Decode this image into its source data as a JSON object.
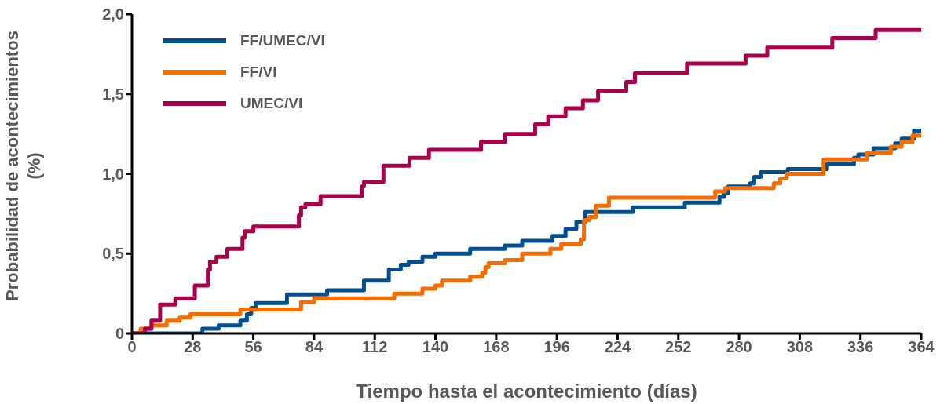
{
  "chart_data": {
    "type": "step",
    "xlabel": "Tiempo hasta el acontecimiento (días)",
    "ylabel": "Probabilidad de acontecimientos (%)",
    "xlim": [
      0,
      364
    ],
    "xticks": [
      0,
      28,
      56,
      84,
      112,
      140,
      168,
      196,
      224,
      252,
      280,
      308,
      336,
      364
    ],
    "ylim": [
      0,
      2
    ],
    "yticks": [
      {
        "value": 0,
        "label": "0"
      },
      {
        "value": 0.5,
        "label": "0,5"
      },
      {
        "value": 1,
        "label": "1,0"
      },
      {
        "value": 1.5,
        "label": "1,5"
      },
      {
        "value": 2,
        "label": "2,0"
      }
    ],
    "grid": false,
    "legend": "top left",
    "line_style": "solid",
    "marker": "none",
    "series": [
      {
        "name": "FF/UMEC/VI",
        "color": "#00508f",
        "x": [
          0,
          32.5,
          40,
          50,
          53,
          55,
          57,
          71.5,
          90,
          107,
          118.5,
          124,
          127.6,
          134,
          140,
          156,
          172,
          180,
          194,
          200,
          205,
          209,
          231,
          255,
          271,
          273,
          275,
          285,
          287,
          290,
          302.5,
          320.6,
          333,
          335,
          342,
          352,
          355,
          360.7,
          364
        ],
        "values": [
          0,
          0.03,
          0.05,
          0.08,
          0.12,
          0.16,
          0.19,
          0.245,
          0.27,
          0.33,
          0.4,
          0.43,
          0.45,
          0.48,
          0.5,
          0.53,
          0.55,
          0.58,
          0.61,
          0.655,
          0.7,
          0.76,
          0.79,
          0.82,
          0.855,
          0.88,
          0.92,
          0.94,
          0.98,
          1.01,
          1.03,
          1.06,
          1.1,
          1.12,
          1.16,
          1.19,
          1.22,
          1.27,
          1.27
        ]
      },
      {
        "name": "FF/VI",
        "color": "#f56c00",
        "x": [
          0,
          4,
          9,
          16,
          22,
          27,
          50,
          78,
          84,
          121,
          134,
          140,
          143,
          156,
          161.5,
          163,
          164.5,
          172,
          180,
          193,
          198,
          207,
          208.5,
          211,
          214,
          220,
          269,
          273.6,
          296,
          299,
          302,
          319,
          339,
          350,
          355,
          360,
          364
        ],
        "values": [
          0,
          0.03,
          0.05,
          0.08,
          0.1,
          0.12,
          0.15,
          0.195,
          0.22,
          0.25,
          0.28,
          0.3,
          0.33,
          0.355,
          0.38,
          0.415,
          0.44,
          0.46,
          0.5,
          0.53,
          0.56,
          0.59,
          0.71,
          0.73,
          0.8,
          0.85,
          0.89,
          0.91,
          0.94,
          0.97,
          1,
          1.09,
          1.13,
          1.17,
          1.2,
          1.24,
          1.24
        ]
      },
      {
        "name": "UMEC/VI",
        "color": "#a8004a",
        "x": [
          0,
          6,
          9,
          13,
          20,
          29,
          35,
          36,
          39,
          44,
          51,
          52,
          56,
          77,
          78,
          80,
          87,
          106,
          107,
          116,
          128,
          137,
          161,
          172,
          186,
          192,
          200,
          208,
          215,
          228,
          232,
          256,
          283,
          293,
          323,
          343,
          364
        ],
        "values": [
          0,
          0.03,
          0.08,
          0.18,
          0.22,
          0.3,
          0.4,
          0.45,
          0.48,
          0.53,
          0.6,
          0.64,
          0.67,
          0.74,
          0.79,
          0.81,
          0.86,
          0.92,
          0.95,
          1.05,
          1.1,
          1.15,
          1.2,
          1.25,
          1.31,
          1.36,
          1.41,
          1.46,
          1.52,
          1.575,
          1.63,
          1.69,
          1.74,
          1.79,
          1.85,
          1.9,
          1.9
        ]
      }
    ]
  }
}
